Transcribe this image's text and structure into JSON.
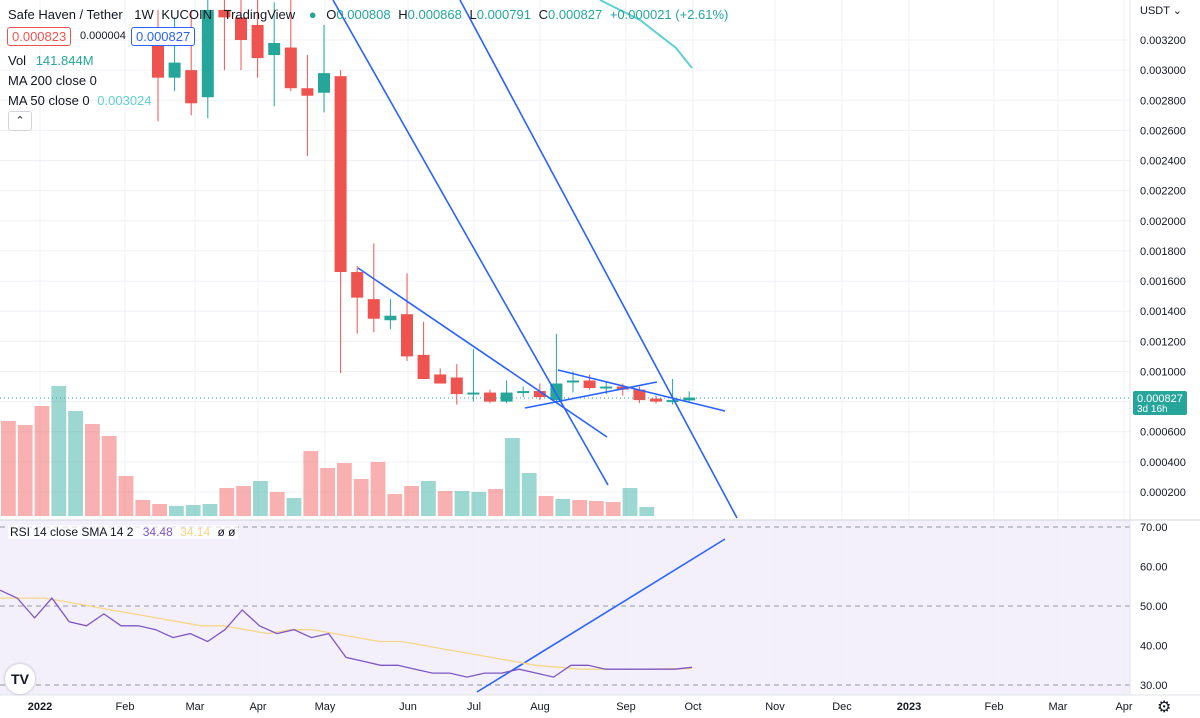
{
  "header": {
    "symbol": "Safe Haven / Tether",
    "interval": "1W",
    "exchange": "KUCOIN",
    "source": "TradingView",
    "o_label": "O",
    "o_value": "0.000808",
    "h_label": "H",
    "h_value": "0.000868",
    "l_label": "L",
    "l_value": "0.000791",
    "c_label": "C",
    "c_value": "0.000827",
    "change": "+0.000021 (+2.61%)",
    "bid": "0.000823",
    "spread": "0.000004",
    "ask": "0.000827"
  },
  "indicators": {
    "vol_label": "Vol",
    "vol_value": "141.844M",
    "ma200_label": "MA 200 close 0",
    "ma50_label": "MA 50 close 0",
    "ma50_value": "0.003024",
    "rsi_label": "RSI 14 close SMA 14 2",
    "rsi_value": "34.48",
    "rsi_sma_value": "34.14",
    "rsi_extra": "ø ø"
  },
  "price_axis": {
    "currency": "USDT",
    "ticks": [
      "0.003200",
      "0.003000",
      "0.002800",
      "0.002600",
      "0.002400",
      "0.002200",
      "0.002000",
      "0.001800",
      "0.001600",
      "0.001400",
      "0.001200",
      "0.001000",
      "0.000800",
      "0.000600",
      "0.000400",
      "0.000200"
    ],
    "last_price": "0.000827",
    "countdown": "3d 16h"
  },
  "rsi_axis": {
    "ticks": [
      "70.00",
      "60.00",
      "50.00",
      "40.00",
      "30.00"
    ]
  },
  "time_axis": [
    "2022",
    "Feb",
    "Mar",
    "Apr",
    "May",
    "Jun",
    "Jul",
    "Aug",
    "Sep",
    "Oct",
    "Nov",
    "Dec",
    "2023",
    "Feb",
    "Mar",
    "Apr"
  ],
  "colors": {
    "up": "#26a69a",
    "down": "#ef5350",
    "trendline": "#2962ff",
    "ma50": "#5fd0d3",
    "rsi": "#7e57c2",
    "rsi_sma": "#f5d78a"
  },
  "chart_data": {
    "type": "candlestick",
    "title": "Safe Haven / Tether · 1W · KUCOIN",
    "price_range": [
      2e-05,
      0.00335
    ],
    "candles": [
      {
        "o": 0.0032,
        "h": 0.0034,
        "l": 0.00266,
        "c": 0.00295
      },
      {
        "o": 0.00295,
        "h": 0.00335,
        "l": 0.00286,
        "c": 0.00305
      },
      {
        "o": 0.003,
        "h": 0.0034,
        "l": 0.0027,
        "c": 0.00278
      },
      {
        "o": 0.00282,
        "h": 0.0035,
        "l": 0.00268,
        "c": 0.0034
      },
      {
        "o": 0.0034,
        "h": 0.0036,
        "l": 0.003,
        "c": 0.00335
      },
      {
        "o": 0.00335,
        "h": 0.0036,
        "l": 0.003,
        "c": 0.0032
      },
      {
        "o": 0.0033,
        "h": 0.0035,
        "l": 0.00295,
        "c": 0.00308
      },
      {
        "o": 0.0031,
        "h": 0.00345,
        "l": 0.00276,
        "c": 0.00318
      },
      {
        "o": 0.00315,
        "h": 0.0035,
        "l": 0.00286,
        "c": 0.00288
      },
      {
        "o": 0.00288,
        "h": 0.0031,
        "l": 0.00243,
        "c": 0.00283
      },
      {
        "o": 0.00285,
        "h": 0.0033,
        "l": 0.00272,
        "c": 0.00298
      },
      {
        "o": 0.00296,
        "h": 0.003,
        "l": 0.00099,
        "c": 0.00166
      },
      {
        "o": 0.00166,
        "h": 0.0017,
        "l": 0.00125,
        "c": 0.00149
      },
      {
        "o": 0.00148,
        "h": 0.00185,
        "l": 0.00126,
        "c": 0.00135
      },
      {
        "o": 0.00134,
        "h": 0.00148,
        "l": 0.00128,
        "c": 0.00137
      },
      {
        "o": 0.00138,
        "h": 0.00165,
        "l": 0.00107,
        "c": 0.0011
      },
      {
        "o": 0.00111,
        "h": 0.00133,
        "l": 0.00095,
        "c": 0.00095
      },
      {
        "o": 0.00098,
        "h": 0.00102,
        "l": 0.00092,
        "c": 0.00092
      },
      {
        "o": 0.00096,
        "h": 0.00105,
        "l": 0.00078,
        "c": 0.00085
      },
      {
        "o": 0.00085,
        "h": 0.00115,
        "l": 0.0008,
        "c": 0.00086
      },
      {
        "o": 0.00086,
        "h": 0.00088,
        "l": 0.00079,
        "c": 0.0008
      },
      {
        "o": 0.0008,
        "h": 0.00094,
        "l": 0.00079,
        "c": 0.00086
      },
      {
        "o": 0.00086,
        "h": 0.0009,
        "l": 0.00083,
        "c": 0.00087
      },
      {
        "o": 0.00087,
        "h": 0.00092,
        "l": 0.00081,
        "c": 0.00083
      },
      {
        "o": 0.00081,
        "h": 0.00125,
        "l": 0.0008,
        "c": 0.00092
      },
      {
        "o": 0.00093,
        "h": 0.001,
        "l": 0.00086,
        "c": 0.00094
      },
      {
        "o": 0.00094,
        "h": 0.00098,
        "l": 0.00088,
        "c": 0.00089
      },
      {
        "o": 0.00089,
        "h": 0.00093,
        "l": 0.00085,
        "c": 0.0009
      },
      {
        "o": 0.0009,
        "h": 0.00092,
        "l": 0.00084,
        "c": 0.00088
      },
      {
        "o": 0.00088,
        "h": 0.0009,
        "l": 0.00079,
        "c": 0.00081
      },
      {
        "o": 0.00082,
        "h": 0.00084,
        "l": 0.00079,
        "c": 0.0008
      },
      {
        "o": 0.0008,
        "h": 0.00095,
        "l": 0.00078,
        "c": 0.00081
      },
      {
        "o": 0.000808,
        "h": 0.000868,
        "l": 0.000791,
        "c": 0.000827
      }
    ],
    "volume": [
      {
        "v": 95,
        "up": false
      },
      {
        "v": 91,
        "up": false
      },
      {
        "v": 110,
        "up": false
      },
      {
        "v": 130,
        "up": true
      },
      {
        "v": 105,
        "up": true
      },
      {
        "v": 92,
        "up": false
      },
      {
        "v": 80,
        "up": false
      },
      {
        "v": 40,
        "up": false
      },
      {
        "v": 16,
        "up": false
      },
      {
        "v": 12,
        "up": false
      },
      {
        "v": 10,
        "up": true
      },
      {
        "v": 11,
        "up": true
      },
      {
        "v": 12,
        "up": true
      },
      {
        "v": 28,
        "up": false
      },
      {
        "v": 30,
        "up": false
      },
      {
        "v": 35,
        "up": true
      },
      {
        "v": 24,
        "up": false
      },
      {
        "v": 18,
        "up": true
      },
      {
        "v": 65,
        "up": false
      },
      {
        "v": 48,
        "up": false
      },
      {
        "v": 53,
        "up": false
      },
      {
        "v": 37,
        "up": false
      },
      {
        "v": 54,
        "up": false
      },
      {
        "v": 22,
        "up": false
      },
      {
        "v": 30,
        "up": false
      },
      {
        "v": 35,
        "up": true
      },
      {
        "v": 25,
        "up": false
      },
      {
        "v": 25,
        "up": true
      },
      {
        "v": 24,
        "up": true
      },
      {
        "v": 27,
        "up": false
      },
      {
        "v": 78,
        "up": true
      },
      {
        "v": 43,
        "up": true
      },
      {
        "v": 20,
        "up": false
      },
      {
        "v": 17,
        "up": true
      },
      {
        "v": 16,
        "up": false
      },
      {
        "v": 15,
        "up": false
      },
      {
        "v": 14,
        "up": false
      },
      {
        "v": 28,
        "up": true
      },
      {
        "v": 9,
        "up": true
      }
    ],
    "ma50": [
      [
        0.00326,
        36
      ],
      [
        0.00315,
        37
      ],
      [
        0.003024,
        38
      ]
    ],
    "rsi_range": [
      28,
      72
    ],
    "rsi": [
      54,
      52,
      47,
      52,
      46,
      45,
      48,
      45,
      45,
      44,
      42,
      43,
      41,
      44,
      49,
      45,
      43,
      44,
      42,
      43,
      37,
      36,
      35,
      35,
      34,
      33,
      33,
      32,
      33,
      33,
      34,
      33,
      32,
      35,
      35,
      34,
      34,
      34,
      34,
      34,
      34.48
    ],
    "rsi_sma": [
      52,
      52,
      52,
      51,
      50,
      49,
      48,
      47,
      46,
      45,
      45,
      44,
      43,
      44,
      44,
      43,
      42,
      41,
      41,
      40,
      39,
      38,
      37,
      36,
      35,
      34.5,
      34,
      34,
      34,
      34,
      34.1,
      34.14
    ]
  }
}
